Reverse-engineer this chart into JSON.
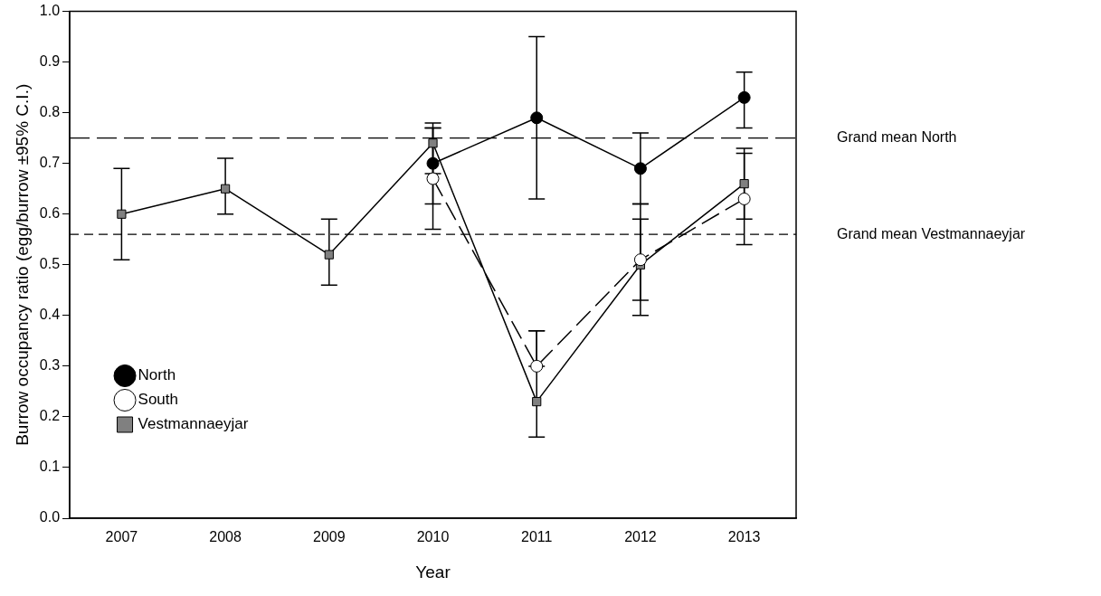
{
  "chart_data": {
    "type": "line",
    "xlabel": "Year",
    "ylabel": "Burrow occupancy ratio (egg/burrow ±95% C.I.)",
    "categories": [
      "2007",
      "2008",
      "2009",
      "2010",
      "2011",
      "2012",
      "2013"
    ],
    "ylim": [
      0,
      1
    ],
    "yticks": [
      {
        "value": 0,
        "label": "0.0"
      },
      0.1,
      0.2,
      0.3,
      0.4,
      0.5,
      0.6,
      0.7,
      0.8,
      0.9,
      {
        "value": 1,
        "label": "1.0"
      }
    ],
    "legend": "bottom left",
    "grid": false,
    "series": [
      {
        "name": "North",
        "color": "#000000",
        "marker": "circle",
        "line_style": "solid",
        "values": [
          null,
          null,
          null,
          0.7,
          0.79,
          0.69,
          0.83
        ],
        "errors": [
          null,
          null,
          null,
          [
            0.62,
            0.77
          ],
          [
            0.63,
            0.95
          ],
          [
            0.62,
            0.76
          ],
          [
            0.77,
            0.88
          ]
        ]
      },
      {
        "name": "South",
        "color": "#ffffff",
        "marker": "circle",
        "line_style": "dashed",
        "values": [
          null,
          null,
          null,
          0.67,
          0.3,
          0.51,
          0.63
        ],
        "errors": [
          null,
          null,
          null,
          [
            0.57,
            0.77
          ],
          [
            0.3,
            0.37
          ],
          [
            0.4,
            0.62
          ],
          [
            0.54,
            0.72
          ]
        ]
      },
      {
        "name": "Vestmannaeyjar",
        "color": "#808080",
        "marker": "square",
        "line_style": "solid",
        "values": [
          0.6,
          0.65,
          0.52,
          0.74,
          0.23,
          0.5,
          0.66
        ],
        "errors": [
          [
            0.51,
            0.69
          ],
          [
            0.6,
            0.71
          ],
          [
            0.46,
            0.59
          ],
          [
            0.68,
            0.78
          ],
          [
            0.16,
            0.37
          ],
          [
            0.43,
            0.59
          ],
          [
            0.59,
            0.73
          ]
        ]
      }
    ],
    "ref_lines": [
      {
        "axis": "y",
        "value": 0.75,
        "label": "Grand mean North",
        "line_style": "dashed",
        "color": "#000000"
      },
      {
        "axis": "y",
        "value": 0.56,
        "label": "Grand mean Vestmannaeyjar",
        "line_style": "dotted",
        "color": "#000000"
      }
    ]
  }
}
